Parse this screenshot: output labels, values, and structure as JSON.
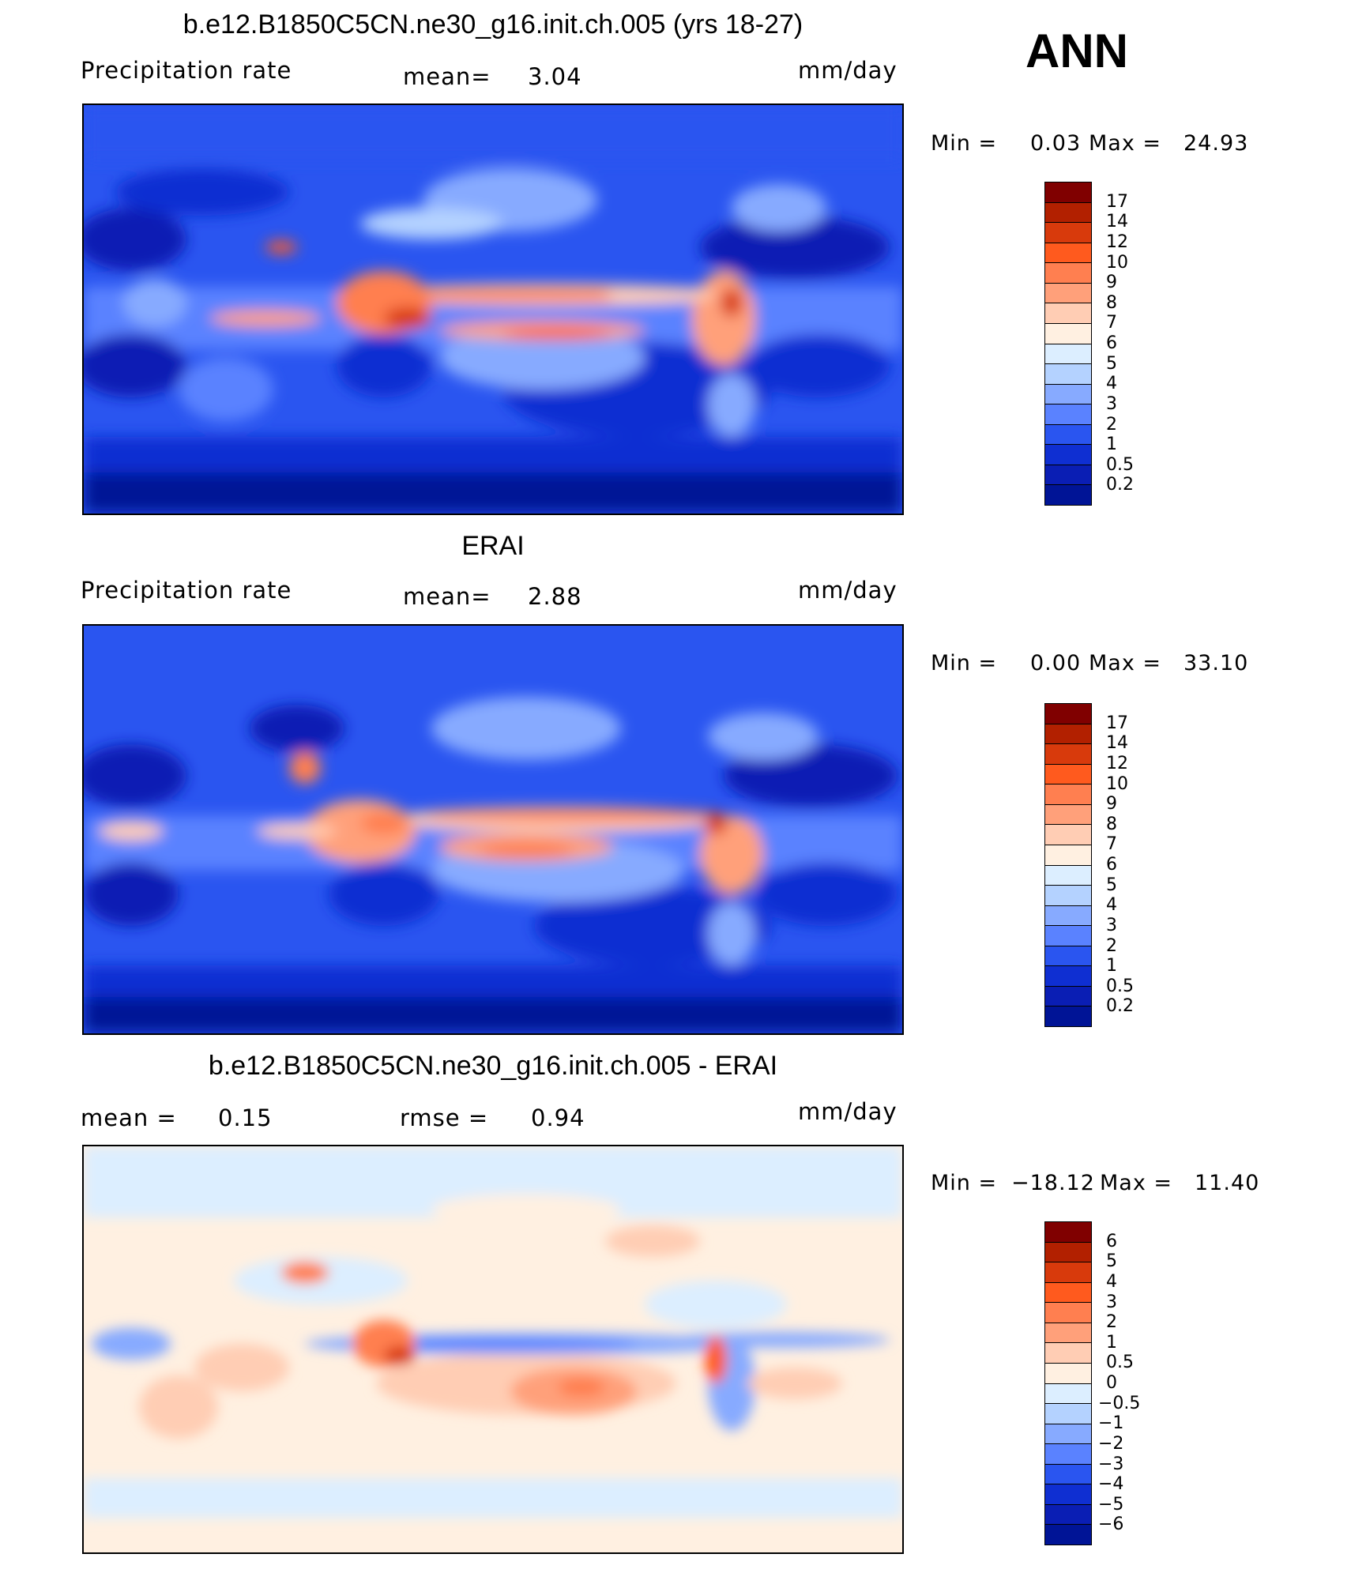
{
  "season": "ANN",
  "units": "mm/day",
  "panels": [
    {
      "id": "model",
      "title": "b.e12.B1850C5CN.ne30_g16.init.ch.005 (yrs 18-27)",
      "variable": "Precipitation  rate",
      "mean_label": "mean=",
      "mean_value": "3.04",
      "units": "mm/day",
      "min_label": "Min  =",
      "min_value": "0.03",
      "max_label": "Max  =",
      "max_value": "24.93",
      "levels": [
        "17",
        "14",
        "12",
        "10",
        "9",
        "8",
        "7",
        "6",
        "5",
        "4",
        "3",
        "2",
        "1",
        "0.5",
        "0.2"
      ]
    },
    {
      "id": "obs",
      "title": "ERAI",
      "variable": "Precipitation  rate",
      "mean_label": "mean=",
      "mean_value": "2.88",
      "units": "mm/day",
      "min_label": "Min  =",
      "min_value": "0.00",
      "max_label": "Max  =",
      "max_value": "33.10",
      "levels": [
        "17",
        "14",
        "12",
        "10",
        "9",
        "8",
        "7",
        "6",
        "5",
        "4",
        "3",
        "2",
        "1",
        "0.5",
        "0.2"
      ]
    },
    {
      "id": "diff",
      "title": "b.e12.B1850C5CN.ne30_g16.init.ch.005 - ERAI",
      "mean_label": "mean  =",
      "mean_value": "0.15",
      "rmse_label": "rmse  =",
      "rmse_value": "0.94",
      "units": "mm/day",
      "min_label": "Min  =",
      "min_value": "−18.12",
      "max_label": "Max  =",
      "max_value": "11.40",
      "levels": [
        "6",
        "5",
        "4",
        "3",
        "2",
        "1",
        "0.5",
        "0",
        "−0.5",
        "−1",
        "−2",
        "−3",
        "−4",
        "−5",
        "−6"
      ]
    }
  ],
  "colors": {
    "precip_scale": [
      "#800000",
      "#b22000",
      "#d83a0c",
      "#ff5a1e",
      "#ff7f50",
      "#ffa07a",
      "#ffcdb4",
      "#fff0e1",
      "#dceeff",
      "#b4d2ff",
      "#87aaff",
      "#5a82ff",
      "#2a55f0",
      "#0f2fd2",
      "#0a1eb4",
      "#001496"
    ],
    "diff_scale": [
      "#800000",
      "#b22000",
      "#d83a0c",
      "#ff5a1e",
      "#ff7f50",
      "#ffa07a",
      "#ffcdb4",
      "#fff0e1",
      "#dceeff",
      "#b4d2ff",
      "#87aaff",
      "#5a82ff",
      "#2a55f0",
      "#0f2fd2",
      "#0a1eb4",
      "#001496"
    ]
  }
}
